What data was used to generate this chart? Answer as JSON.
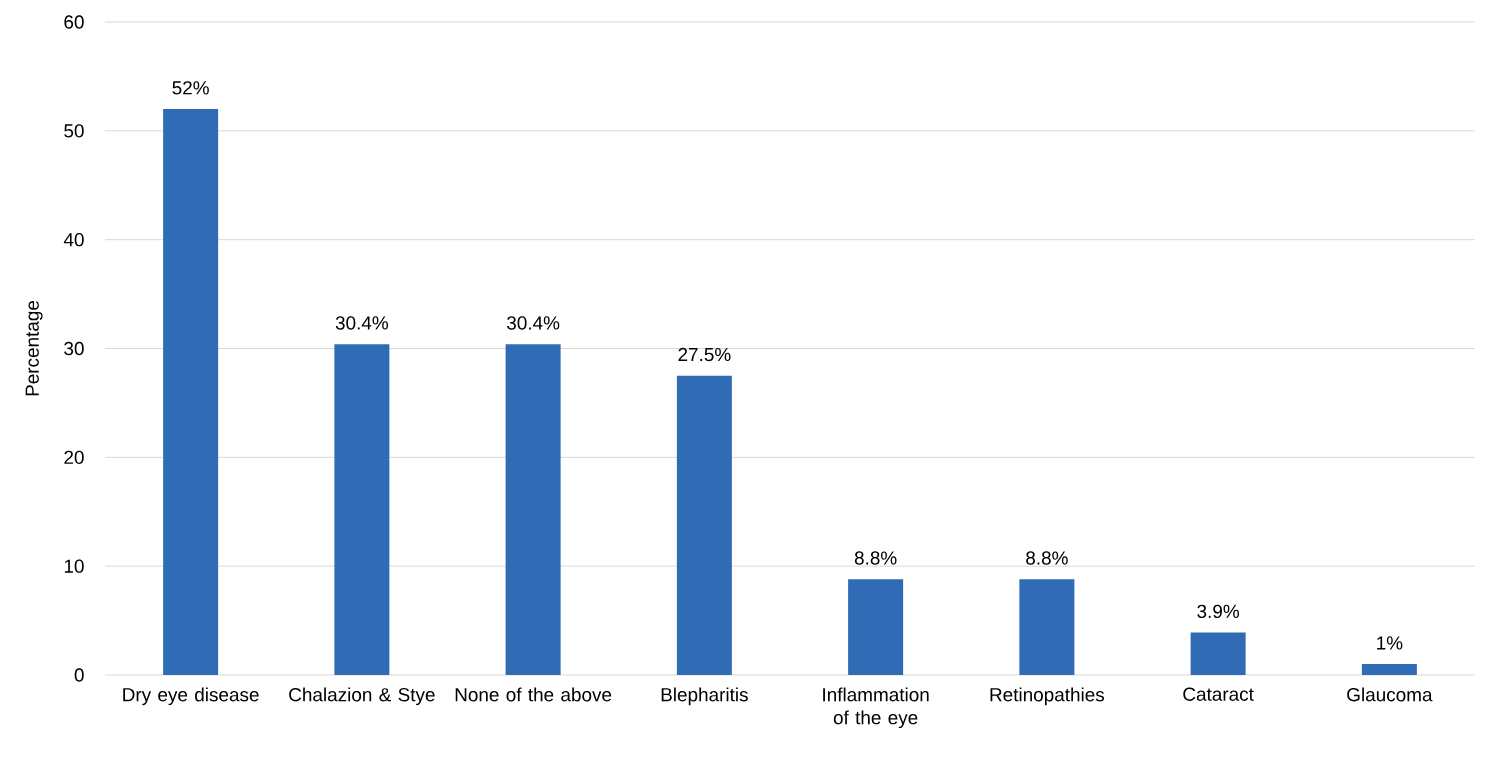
{
  "chart_data": {
    "type": "bar",
    "ylabel": "Percentage",
    "categories": [
      "Dry eye disease",
      "Chalazion & Stye",
      "None of the above",
      "Blepharitis",
      "Inflammation of the eye",
      "Retinopathies",
      "Cataract",
      "Glaucoma"
    ],
    "values": [
      52,
      30.4,
      30.4,
      27.5,
      8.8,
      8.8,
      3.9,
      1
    ],
    "value_labels": [
      "52%",
      "30.4%",
      "30.4%",
      "27.5%",
      "8.8%",
      "8.8%",
      "3.9%",
      "1%"
    ],
    "color": "#2f6cb5",
    "ylim": [
      0,
      60
    ],
    "yticks": [
      0,
      10,
      20,
      30,
      40,
      50,
      60
    ],
    "grid": "y"
  }
}
